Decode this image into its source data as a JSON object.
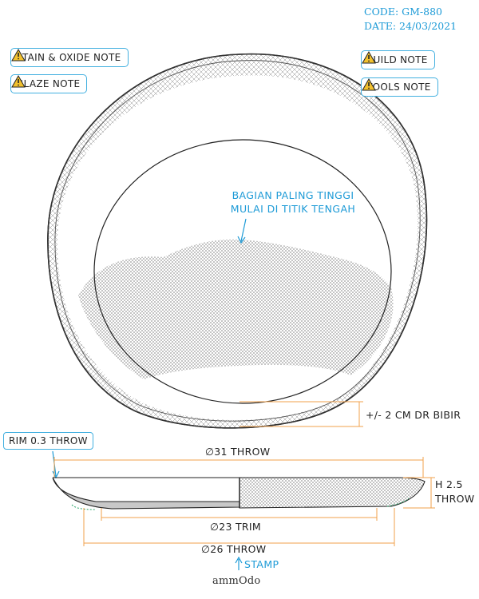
{
  "header": {
    "code": "CODE: GM-880",
    "date": "DATE: 24/03/2021"
  },
  "notes": {
    "stain_oxide": "STAIN & OXIDE NOTE",
    "glaze": "GLAZE NOTE",
    "build": "BUILD NOTE",
    "tools": "TOOLS NOTE"
  },
  "top_view": {
    "callout_line1": "BAGIAN PALING TINGGI",
    "callout_line2": "MULAI DI TITIK TENGAH",
    "edge_offset": "+/- 2 CM DR BIBIR"
  },
  "side_view": {
    "rim": "RIM 0.3 THROW",
    "diameter_outer": "∅31 THROW",
    "height_line1": "H 2.5",
    "height_line2": "THROW",
    "diameter_trim": "∅23 TRIM",
    "diameter_base": "∅26 THROW",
    "stamp": "STAMP"
  },
  "brand": {
    "logo": "ammOdo"
  },
  "colors": {
    "accent": "#1e9bd7",
    "dimension": "#f0a04b",
    "hatch": "#9a9a9a"
  },
  "icons": {
    "note": "warning-icon"
  }
}
